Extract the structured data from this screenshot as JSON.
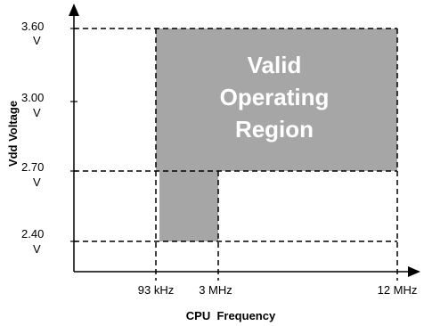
{
  "colors": {
    "region_fill": "#a6a6a6",
    "axis": "#000000",
    "region_text": "#ffffff"
  },
  "chart": {
    "x_axis_label": "CPU  Frequency",
    "y_axis_label": "Vdd Voltage",
    "region_label_lines": [
      "Valid",
      "Operating",
      "Region"
    ],
    "x_ticks": [
      {
        "label": "93 kHz"
      },
      {
        "label": "3 MHz"
      },
      {
        "label": "12 MHz"
      }
    ],
    "y_ticks": [
      {
        "value": "3.60",
        "unit": "V"
      },
      {
        "value": "3.00",
        "unit": "V"
      },
      {
        "value": "2.70",
        "unit": "V"
      },
      {
        "value": "2.40",
        "unit": "V"
      }
    ]
  }
}
